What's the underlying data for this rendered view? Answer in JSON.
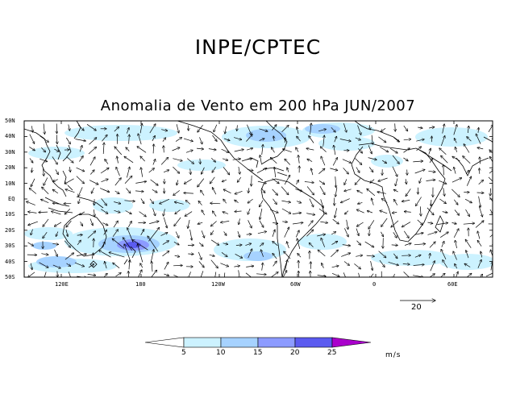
{
  "header": {
    "organization": "INPE/CPTEC"
  },
  "map": {
    "title": "Anomalia de Vento em 200 hPa JUN/2007",
    "lat_labels": [
      "50N",
      "40N",
      "30N",
      "20N",
      "10N",
      "EQ",
      "10S",
      "20S",
      "30S",
      "40S",
      "50S"
    ],
    "lon_labels": [
      "120E",
      "180",
      "120W",
      "60W",
      "0",
      "60E"
    ],
    "colors": {
      "c5_10": "#ccf2ff",
      "c10_15": "#a6d2ff",
      "c15_20": "#8c9bff",
      "c20_25": "#5b5bf0",
      "c25p": "#aa00cc",
      "arrow": "#000000",
      "coast": "#000000"
    }
  },
  "reference_vector": {
    "label": "20"
  },
  "colorbar": {
    "ticks": [
      "5",
      "10",
      "15",
      "20",
      "25"
    ],
    "unit": "m/s"
  }
}
